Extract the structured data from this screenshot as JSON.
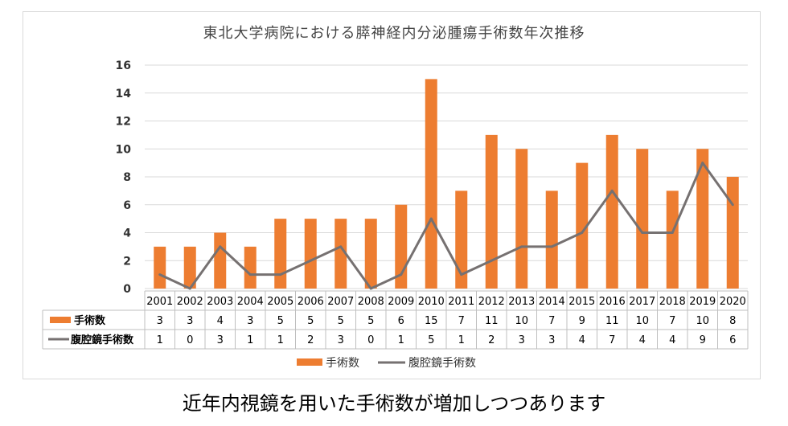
{
  "chart_data": {
    "type": "bar",
    "title": "東北大学病院における膵神経内分泌腫瘍手術数年次推移",
    "categories": [
      "2001",
      "2002",
      "2003",
      "2004",
      "2005",
      "2006",
      "2007",
      "2008",
      "2009",
      "2010",
      "2011",
      "2012",
      "2013",
      "2014",
      "2015",
      "2016",
      "2017",
      "2018",
      "2019",
      "2020"
    ],
    "series": [
      {
        "name": "手術数",
        "kind": "bar",
        "color": "#ED7D31",
        "values": [
          3,
          3,
          4,
          3,
          5,
          5,
          5,
          5,
          6,
          15,
          7,
          11,
          10,
          7,
          9,
          11,
          10,
          7,
          10,
          8
        ]
      },
      {
        "name": "腹腔鏡手術数",
        "kind": "line",
        "color": "#767171",
        "values": [
          1,
          0,
          3,
          1,
          1,
          2,
          3,
          0,
          1,
          5,
          1,
          2,
          3,
          3,
          4,
          7,
          4,
          4,
          9,
          6
        ]
      }
    ],
    "ylim": [
      0,
      16
    ],
    "yticks": [
      0,
      2,
      4,
      6,
      8,
      10,
      12,
      14,
      16
    ],
    "grid": true,
    "data_table": true,
    "legend_position": "bottom"
  },
  "caption": "近年内視鏡を用いた手術数が増加しつつあります"
}
